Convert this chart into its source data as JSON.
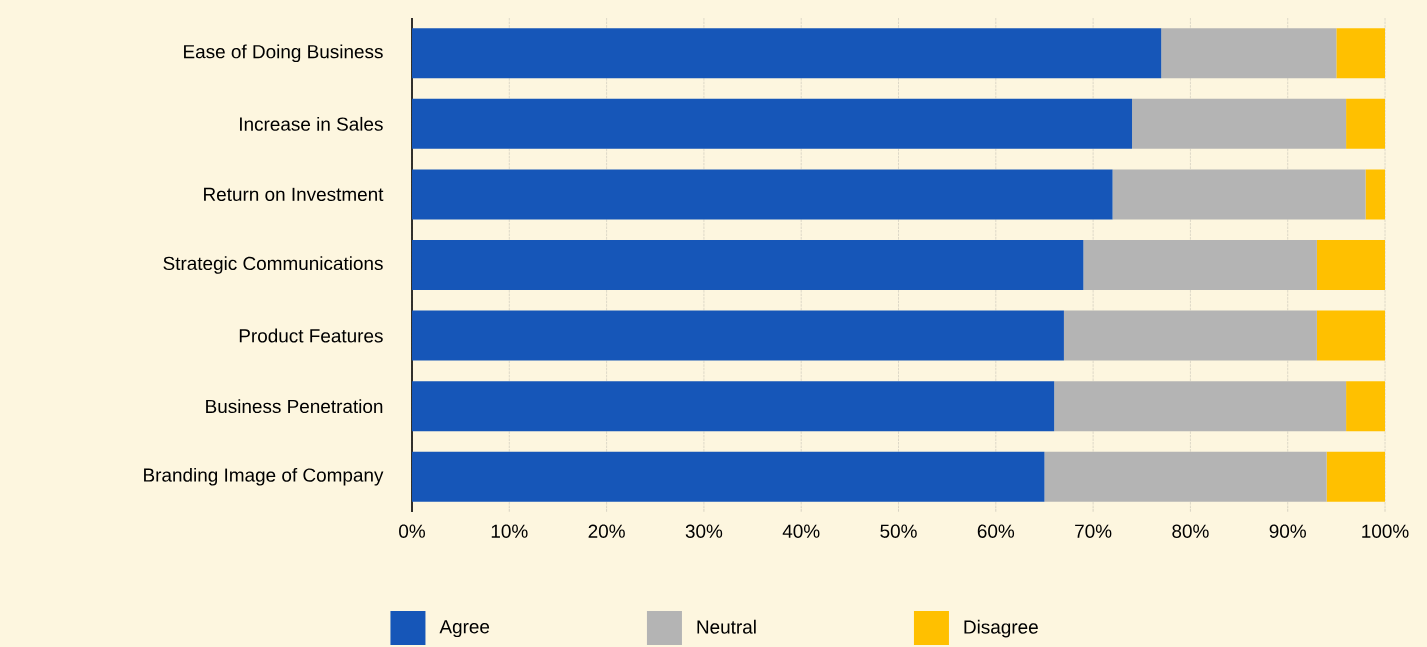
{
  "chart_data": {
    "type": "bar",
    "orientation": "horizontal",
    "stacked": true,
    "categories": [
      "Ease of Doing Business",
      "Increase in Sales",
      "Return on Investment",
      "Strategic Communications",
      "Product Features",
      "Business Penetration",
      "Branding Image of Company"
    ],
    "series": [
      {
        "name": "Agree",
        "color": "#1656b8",
        "values": [
          77,
          74,
          72,
          69,
          67,
          66,
          65
        ]
      },
      {
        "name": "Neutral",
        "color": "#b4b4b4",
        "values": [
          18,
          22,
          26,
          24,
          26,
          30,
          29
        ]
      },
      {
        "name": "Disagree",
        "color": "#ffc000",
        "values": [
          5,
          4,
          2,
          7,
          7,
          4,
          6
        ]
      }
    ],
    "xlim": [
      0,
      100
    ],
    "xticks": [
      {
        "value": 0,
        "label": "0%"
      },
      {
        "value": 10,
        "label": "10%"
      },
      {
        "value": 20,
        "label": "20%"
      },
      {
        "value": 30,
        "label": "30%"
      },
      {
        "value": 40,
        "label": "40%"
      },
      {
        "value": 50,
        "label": "50%"
      },
      {
        "value": 60,
        "label": "60%"
      },
      {
        "value": 70,
        "label": "70%"
      },
      {
        "value": 80,
        "label": "80%"
      },
      {
        "value": 90,
        "label": "90%"
      },
      {
        "value": 100,
        "label": "100%"
      }
    ],
    "grid": "x",
    "legend": "bottom"
  }
}
